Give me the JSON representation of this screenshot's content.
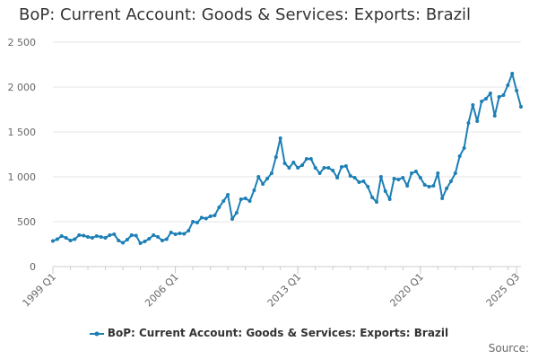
{
  "chart_data": {
    "type": "line",
    "title": "BoP: Current Account: Goods & Services: Exports: Brazil",
    "xlabel": "",
    "ylabel": "",
    "ylim": [
      0,
      2500
    ],
    "yticks": [
      0,
      500,
      1000,
      1500,
      2000,
      2500
    ],
    "ytick_labels": [
      "0",
      "500",
      "1 000",
      "1 500",
      "2 000",
      "2 500"
    ],
    "xtick_labels": [
      "1999 Q1",
      "2006 Q1",
      "2013 Q1",
      "2020 Q1",
      "2025 Q3"
    ],
    "xtick_indices": [
      0,
      28,
      56,
      84,
      106
    ],
    "series": [
      {
        "name": "BoP: Current Account: Goods & Services: Exports: Brazil",
        "color": "#1c7fb5",
        "values": [
          285,
          305,
          340,
          320,
          290,
          305,
          350,
          345,
          330,
          320,
          340,
          330,
          320,
          350,
          360,
          290,
          265,
          300,
          350,
          345,
          260,
          280,
          310,
          350,
          330,
          290,
          305,
          380,
          360,
          370,
          365,
          400,
          500,
          490,
          545,
          535,
          560,
          570,
          660,
          730,
          800,
          530,
          600,
          750,
          760,
          730,
          850,
          1000,
          920,
          980,
          1040,
          1220,
          1430,
          1150,
          1100,
          1160,
          1100,
          1130,
          1200,
          1200,
          1100,
          1040,
          1100,
          1100,
          1070,
          990,
          1110,
          1120,
          1010,
          990,
          940,
          950,
          890,
          770,
          720,
          1000,
          840,
          750,
          980,
          970,
          990,
          900,
          1040,
          1060,
          990,
          910,
          890,
          900,
          1040,
          760,
          870,
          950,
          1040,
          1230,
          1320,
          1600,
          1800,
          1620,
          1840,
          1870,
          1930,
          1680,
          1890,
          1910,
          2020,
          2150,
          1960,
          1780
        ]
      }
    ],
    "legend": "bottom",
    "grid": true
  },
  "footer": {
    "source_label": "Source:"
  }
}
